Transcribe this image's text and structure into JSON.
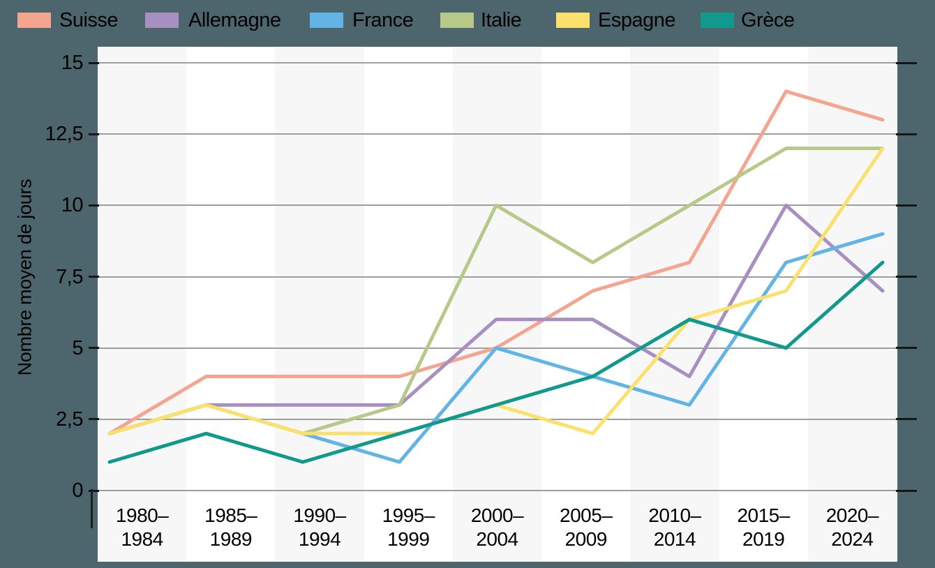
{
  "chart_data": {
    "type": "line",
    "title": "",
    "ylabel": "Nombre moyen de jours",
    "categories": [
      "1980–1984",
      "1985–1989",
      "1990–1994",
      "1995–1999",
      "2000–2004",
      "2005–2009",
      "2010–2014",
      "2015–2019",
      "2020–2024"
    ],
    "ytick_values": [
      15,
      12.5,
      10,
      7.5,
      5,
      2.5,
      0
    ],
    "ytick_labels": [
      "15",
      "12,5",
      "10",
      "7,5",
      "5",
      "2,5",
      "0"
    ],
    "ylim": [
      0,
      15
    ],
    "grid": "horizontal",
    "legend_position": "top",
    "plot_colors": {
      "background_band_odd": "#f7f7f7",
      "background_band_even": "#ffffff",
      "gridline": "#9e9e9e",
      "tick": "#161616",
      "page_background": "#4d656d",
      "text": "#000000"
    },
    "series": [
      {
        "name": "Suisse",
        "color": "#f4a58f",
        "values": [
          2,
          4,
          4,
          4,
          5,
          7,
          8,
          14,
          13
        ]
      },
      {
        "name": "Allemagne",
        "color": "#a78fc2",
        "values": [
          2,
          3,
          3,
          3,
          6,
          6,
          4,
          10,
          7
        ]
      },
      {
        "name": "France",
        "color": "#62b4e6",
        "values": [
          2,
          3,
          2,
          1,
          5,
          4,
          3,
          8,
          9
        ]
      },
      {
        "name": "Italie",
        "color": "#b6c988",
        "values": [
          2,
          3,
          2,
          3,
          10,
          8,
          10,
          12,
          12
        ]
      },
      {
        "name": "Espagne",
        "color": "#fbe16c",
        "values": [
          2,
          3,
          2,
          2,
          3,
          2,
          6,
          7,
          12
        ]
      },
      {
        "name": "Grèce",
        "color": "#11998d",
        "values": [
          1,
          2,
          1,
          2,
          3,
          4,
          6,
          5,
          8
        ]
      }
    ]
  }
}
